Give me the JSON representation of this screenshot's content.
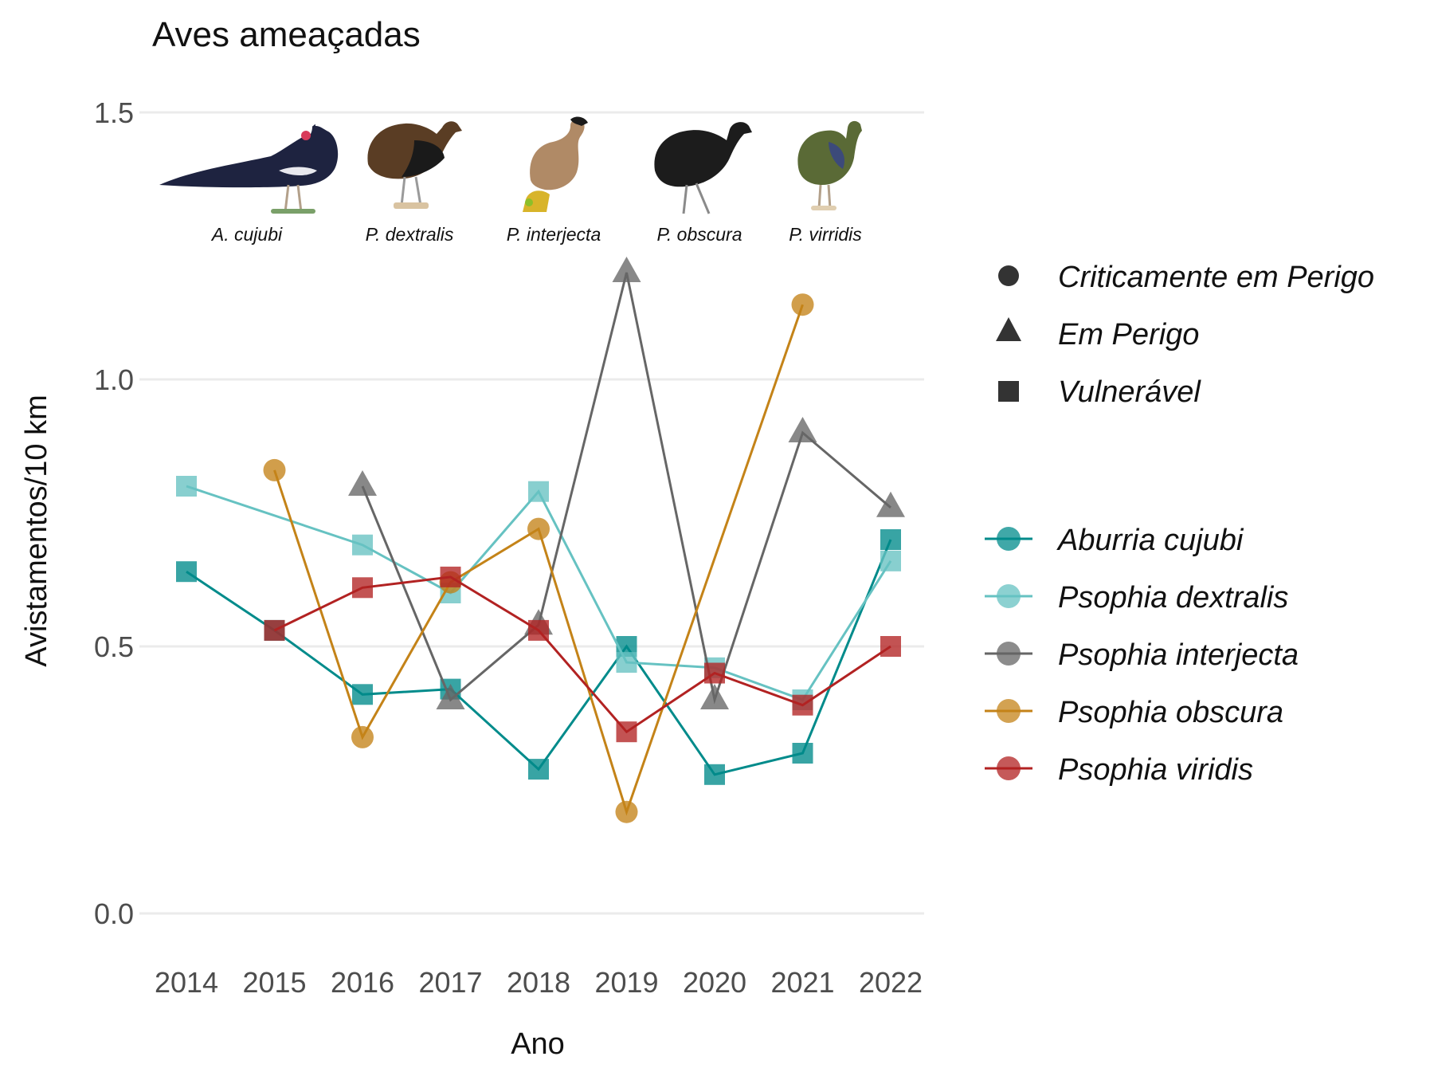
{
  "chart_data": {
    "type": "line",
    "title": "Aves ameaçadas",
    "xlabel": "Ano",
    "ylabel": "Avistamentos/10 km",
    "ylim": [
      -0.09,
      1.6
    ],
    "yticks": [
      "0.0",
      "0.5",
      "1.0",
      "1.5"
    ],
    "ytick_values": [
      0.0,
      0.5,
      1.0,
      1.5
    ],
    "categories": [
      "2014",
      "2015",
      "2016",
      "2017",
      "2018",
      "2019",
      "2020",
      "2021",
      "2022"
    ],
    "grid": true,
    "legend_position": "right",
    "shape_legend": [
      {
        "shape": "circle",
        "label": "Criticamente em Perigo"
      },
      {
        "shape": "triangle",
        "label": "Em Perigo"
      },
      {
        "shape": "square",
        "label": "Vulnerável"
      }
    ],
    "series": [
      {
        "name": "Aburria cujubi",
        "color": "#008b8b",
        "shape": "square",
        "values": [
          0.64,
          0.53,
          0.41,
          0.42,
          0.27,
          0.5,
          0.26,
          0.3,
          0.7
        ]
      },
      {
        "name": "Psophia dextralis",
        "color": "#66c2c2",
        "shape": "square",
        "values": [
          0.8,
          null,
          0.69,
          0.6,
          0.79,
          0.47,
          0.46,
          0.4,
          0.66
        ]
      },
      {
        "name": "Psophia interjecta",
        "color": "#666666",
        "shape": "triangle",
        "values": [
          null,
          null,
          0.8,
          0.4,
          0.54,
          1.2,
          0.4,
          0.9,
          0.76
        ]
      },
      {
        "name": "Psophia obscura",
        "color": "#c48318",
        "shape": "circle",
        "values": [
          null,
          0.83,
          0.33,
          0.62,
          0.72,
          0.19,
          null,
          1.14,
          null
        ]
      },
      {
        "name": "Psophia viridis",
        "color": "#b22222",
        "shape": "square",
        "values": [
          null,
          0.53,
          0.61,
          0.63,
          0.53,
          0.34,
          0.45,
          0.39,
          0.5
        ]
      }
    ],
    "annotations": [
      "A. cujubi",
      "P. dextralis",
      "P. interjecta",
      "P. obscura",
      "P. virridis"
    ]
  }
}
